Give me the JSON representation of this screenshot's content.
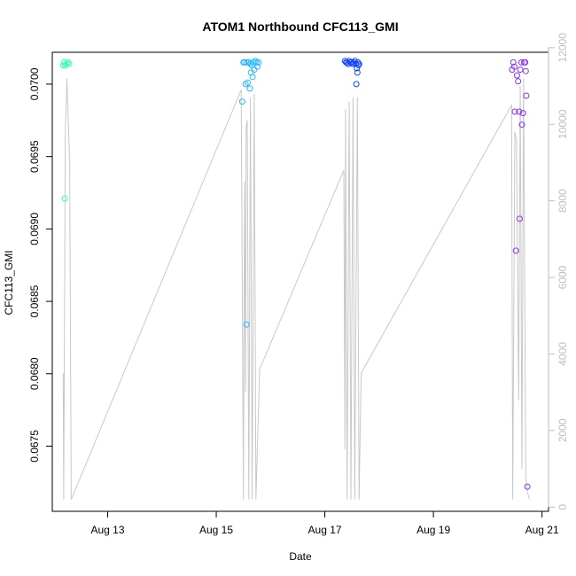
{
  "chart_data": {
    "type": "scatter",
    "title": "ATOM1 Northbound CFC113_GMI",
    "xlabel": "Date",
    "ylabel": "CFC113_GMI",
    "x_unit": "days (August)",
    "xlim": [
      11.98,
      21.12
    ],
    "ylim": [
      0.06705,
      0.07022
    ],
    "x_ticks": [
      {
        "value": 13,
        "label": "Aug 13"
      },
      {
        "value": 15,
        "label": "Aug 15"
      },
      {
        "value": 17,
        "label": "Aug 17"
      },
      {
        "value": 19,
        "label": "Aug 19"
      },
      {
        "value": 21,
        "label": "Aug 21"
      }
    ],
    "y_ticks": [
      {
        "value": 0.0675,
        "label": "0.0675"
      },
      {
        "value": 0.068,
        "label": "0.0680"
      },
      {
        "value": 0.0685,
        "label": "0.0685"
      },
      {
        "value": 0.069,
        "label": "0.0690"
      },
      {
        "value": 0.0695,
        "label": "0.0695"
      },
      {
        "value": 0.07,
        "label": "0.0700"
      }
    ],
    "secondary_axis": {
      "side": "right",
      "color": "#bebebe",
      "lim": [
        -110,
        11880
      ],
      "ticks": [
        {
          "value": 0,
          "label": "0"
        },
        {
          "value": 2000,
          "label": "2000"
        },
        {
          "value": 4000,
          "label": "4000"
        },
        {
          "value": 6000,
          "label": "6000"
        },
        {
          "value": 8000,
          "label": "8000"
        },
        {
          "value": 10000,
          "label": "10000"
        },
        {
          "value": 12000,
          "label": "12000"
        }
      ]
    },
    "altitude_line": {
      "color": "#c8c8c8",
      "points": [
        [
          12.18,
          3500
        ],
        [
          12.19,
          200
        ],
        [
          12.22,
          9800
        ],
        [
          12.25,
          11200
        ],
        [
          12.3,
          9000
        ],
        [
          12.33,
          200
        ],
        [
          15.46,
          10900
        ],
        [
          15.5,
          200
        ],
        [
          15.52,
          8500
        ],
        [
          15.54,
          3000
        ],
        [
          15.55,
          9900
        ],
        [
          15.57,
          10100
        ],
        [
          15.6,
          200
        ],
        [
          15.63,
          10700
        ],
        [
          15.66,
          200
        ],
        [
          15.7,
          10800
        ],
        [
          15.73,
          200
        ],
        [
          15.8,
          3600
        ],
        [
          17.35,
          8800
        ],
        [
          17.37,
          1500
        ],
        [
          17.38,
          10400
        ],
        [
          17.41,
          200
        ],
        [
          17.45,
          10600
        ],
        [
          17.48,
          200
        ],
        [
          17.52,
          10700
        ],
        [
          17.55,
          200
        ],
        [
          17.6,
          10700
        ],
        [
          17.63,
          200
        ],
        [
          17.67,
          3500
        ],
        [
          20.44,
          10500
        ],
        [
          20.46,
          200
        ],
        [
          20.5,
          9800
        ],
        [
          20.53,
          9600
        ],
        [
          20.57,
          2800
        ],
        [
          20.6,
          11000
        ],
        [
          20.63,
          1000
        ],
        [
          20.66,
          11200
        ],
        [
          20.7,
          800
        ],
        [
          20.73,
          400
        ],
        [
          20.77,
          200
        ]
      ]
    },
    "series": [
      {
        "color": "#33ffbb",
        "points": [
          [
            12.18,
            0.07013
          ],
          [
            12.2,
            0.07015
          ],
          [
            12.22,
            0.07013
          ],
          [
            12.24,
            0.07014
          ],
          [
            12.27,
            0.07015
          ],
          [
            12.29,
            0.07014
          ],
          [
            12.21,
            0.06921
          ]
        ]
      },
      {
        "color": "#22bbff",
        "points": [
          [
            15.48,
            0.06988
          ],
          [
            15.5,
            0.07015
          ],
          [
            15.52,
            0.07015
          ],
          [
            15.54,
            0.07
          ],
          [
            15.56,
            0.07015
          ],
          [
            15.58,
            0.07001
          ],
          [
            15.6,
            0.07015
          ],
          [
            15.62,
            0.06997
          ],
          [
            15.63,
            0.07014
          ],
          [
            15.64,
            0.07008
          ],
          [
            15.66,
            0.07013
          ],
          [
            15.67,
            0.07005
          ],
          [
            15.68,
            0.07015
          ],
          [
            15.7,
            0.0701
          ],
          [
            15.72,
            0.07016
          ],
          [
            15.74,
            0.07015
          ],
          [
            15.76,
            0.07012
          ],
          [
            15.78,
            0.07015
          ],
          [
            15.56,
            0.06834
          ]
        ]
      },
      {
        "color": "#1144ff",
        "points": [
          [
            17.37,
            0.07016
          ],
          [
            17.39,
            0.07015
          ],
          [
            17.41,
            0.07015
          ],
          [
            17.43,
            0.07014
          ],
          [
            17.45,
            0.07016
          ],
          [
            17.47,
            0.07015
          ],
          [
            17.49,
            0.07015
          ],
          [
            17.51,
            0.07014
          ],
          [
            17.53,
            0.07015
          ],
          [
            17.55,
            0.07016
          ],
          [
            17.57,
            0.07014
          ],
          [
            17.59,
            0.07011
          ],
          [
            17.6,
            0.07008
          ],
          [
            17.61,
            0.07015
          ],
          [
            17.62,
            0.07013
          ],
          [
            17.63,
            0.07014
          ],
          [
            17.58,
            0.07
          ]
        ]
      },
      {
        "color": "#8833ee",
        "points": [
          [
            20.45,
            0.0701
          ],
          [
            20.47,
            0.07015
          ],
          [
            20.49,
            0.07012
          ],
          [
            20.5,
            0.06981
          ],
          [
            20.52,
            0.06885
          ],
          [
            20.54,
            0.07006
          ],
          [
            20.56,
            0.07002
          ],
          [
            20.58,
            0.06981
          ],
          [
            20.59,
            0.06907
          ],
          [
            20.6,
            0.0701
          ],
          [
            20.62,
            0.07015
          ],
          [
            20.63,
            0.06972
          ],
          [
            20.65,
            0.0698
          ],
          [
            20.67,
            0.07015
          ],
          [
            20.69,
            0.07015
          ],
          [
            20.7,
            0.07009
          ],
          [
            20.71,
            0.06992
          ],
          [
            20.73,
            0.06722
          ]
        ]
      }
    ]
  }
}
